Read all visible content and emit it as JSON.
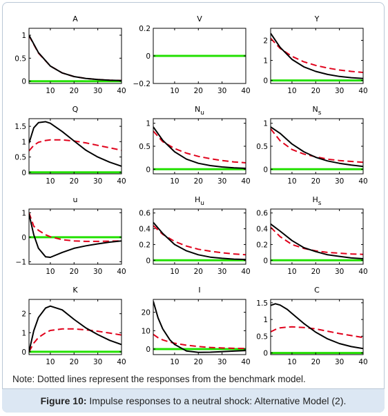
{
  "note": "Note: Dotted lines represent the responses from the benchmark model.",
  "caption": {
    "label": "Figure 10:",
    "text": "Impulse responses to a neutral shock: Alternative Model (2)."
  },
  "colors": {
    "alternative": "#000000",
    "benchmark": "#e0001a",
    "zero": "#22e000"
  },
  "chart_data": [
    {
      "type": "line",
      "title": "A",
      "xlim": [
        1,
        40
      ],
      "ylim": [
        -0.05,
        1.15
      ],
      "xticks": [
        10,
        20,
        30,
        40
      ],
      "yticks": [
        {
          "v": 0,
          "l": "0"
        },
        {
          "v": 0.5,
          "l": "0.5"
        },
        {
          "v": 1,
          "l": "1"
        }
      ],
      "x": [
        1,
        5,
        10,
        15,
        20,
        25,
        30,
        35,
        40
      ],
      "series": [
        {
          "role": "alternative",
          "values": [
            1.0,
            0.62,
            0.33,
            0.18,
            0.1,
            0.06,
            0.035,
            0.022,
            0.015
          ]
        },
        {
          "role": "benchmark",
          "values": [
            0.99,
            0.61,
            0.33,
            0.18,
            0.1,
            0.06,
            0.035,
            0.022,
            0.015
          ]
        },
        {
          "role": "zero",
          "values": [
            0,
            0,
            0,
            0,
            0,
            0,
            0,
            0,
            0
          ]
        }
      ]
    },
    {
      "type": "line",
      "title": "V",
      "xlim": [
        1,
        40
      ],
      "ylim": [
        -0.2,
        0.2
      ],
      "xticks": [
        10,
        20,
        30,
        40
      ],
      "yticks": [
        {
          "v": -0.2,
          "l": "−0.2"
        },
        {
          "v": 0,
          "l": "0"
        },
        {
          "v": 0.2,
          "l": "0.2"
        }
      ],
      "x": [
        1,
        40
      ],
      "series": [
        {
          "role": "zero",
          "values": [
            0,
            0
          ]
        }
      ]
    },
    {
      "type": "line",
      "title": "Y",
      "xlim": [
        1,
        40
      ],
      "ylim": [
        -0.15,
        2.6
      ],
      "xticks": [
        10,
        20,
        30,
        40
      ],
      "yticks": [
        {
          "v": 0,
          "l": "0"
        },
        {
          "v": 1,
          "l": "1"
        },
        {
          "v": 2,
          "l": "2"
        }
      ],
      "x": [
        1,
        5,
        10,
        15,
        20,
        25,
        30,
        35,
        40
      ],
      "series": [
        {
          "role": "alternative",
          "values": [
            2.35,
            1.65,
            1.05,
            0.68,
            0.45,
            0.3,
            0.2,
            0.14,
            0.1
          ]
        },
        {
          "role": "benchmark",
          "values": [
            2.1,
            1.6,
            1.2,
            0.93,
            0.75,
            0.62,
            0.52,
            0.45,
            0.4
          ]
        },
        {
          "role": "zero",
          "values": [
            0,
            0,
            0,
            0,
            0,
            0,
            0,
            0,
            0
          ]
        }
      ]
    },
    {
      "type": "line",
      "title": "Q",
      "xlim": [
        1,
        40
      ],
      "ylim": [
        -0.05,
        1.75
      ],
      "xticks": [
        10,
        20,
        30,
        40
      ],
      "yticks": [
        {
          "v": 0,
          "l": "0"
        },
        {
          "v": 0.5,
          "l": "0.5"
        },
        {
          "v": 1,
          "l": "1"
        },
        {
          "v": 1.5,
          "l": "1.5"
        }
      ],
      "x": [
        1,
        3,
        5,
        8,
        10,
        15,
        20,
        25,
        30,
        35,
        40
      ],
      "series": [
        {
          "role": "alternative",
          "values": [
            0.95,
            1.45,
            1.62,
            1.65,
            1.6,
            1.33,
            1.02,
            0.72,
            0.5,
            0.33,
            0.2
          ]
        },
        {
          "role": "benchmark",
          "values": [
            0.7,
            0.88,
            0.98,
            1.04,
            1.06,
            1.06,
            1.02,
            0.96,
            0.88,
            0.8,
            0.72
          ]
        },
        {
          "role": "zero",
          "values": [
            0,
            0,
            0,
            0,
            0,
            0,
            0,
            0,
            0,
            0,
            0
          ]
        }
      ]
    },
    {
      "type": "line",
      "title": "N",
      "subscript": "u",
      "xlim": [
        1,
        40
      ],
      "ylim": [
        -0.1,
        1.1
      ],
      "xticks": [
        10,
        20,
        30,
        40
      ],
      "yticks": [
        {
          "v": 0,
          "l": "0"
        },
        {
          "v": 0.5,
          "l": "0.5"
        },
        {
          "v": 1,
          "l": "1"
        }
      ],
      "x": [
        1,
        5,
        10,
        15,
        20,
        25,
        30,
        35,
        40
      ],
      "series": [
        {
          "role": "alternative",
          "values": [
            0.92,
            0.63,
            0.38,
            0.22,
            0.13,
            0.08,
            0.05,
            0.03,
            0.02
          ]
        },
        {
          "role": "benchmark",
          "values": [
            0.83,
            0.6,
            0.45,
            0.35,
            0.28,
            0.23,
            0.19,
            0.16,
            0.14
          ]
        },
        {
          "role": "zero",
          "values": [
            0,
            0,
            0,
            0,
            0,
            0,
            0,
            0,
            0
          ]
        }
      ]
    },
    {
      "type": "line",
      "title": "N",
      "subscript": "s",
      "xlim": [
        1,
        40
      ],
      "ylim": [
        -0.1,
        1.1
      ],
      "xticks": [
        10,
        20,
        30,
        40
      ],
      "yticks": [
        {
          "v": 0,
          "l": "0"
        },
        {
          "v": 0.5,
          "l": "0.5"
        },
        {
          "v": 1,
          "l": "1"
        }
      ],
      "x": [
        1,
        5,
        10,
        15,
        20,
        25,
        30,
        35,
        40
      ],
      "series": [
        {
          "role": "alternative",
          "values": [
            0.92,
            0.78,
            0.55,
            0.38,
            0.26,
            0.18,
            0.13,
            0.09,
            0.06
          ]
        },
        {
          "role": "benchmark",
          "values": [
            0.88,
            0.62,
            0.43,
            0.33,
            0.27,
            0.22,
            0.19,
            0.17,
            0.15
          ]
        },
        {
          "role": "zero",
          "values": [
            0,
            0,
            0,
            0,
            0,
            0,
            0,
            0,
            0
          ]
        }
      ]
    },
    {
      "type": "line",
      "title": "u",
      "xlim": [
        1,
        40
      ],
      "ylim": [
        -1.1,
        1.15
      ],
      "xticks": [
        10,
        20,
        30,
        40
      ],
      "yticks": [
        {
          "v": -1,
          "l": "−1"
        },
        {
          "v": 0,
          "l": "0"
        },
        {
          "v": 1,
          "l": "1"
        }
      ],
      "x": [
        1,
        3,
        5,
        8,
        10,
        15,
        20,
        25,
        30,
        35,
        40
      ],
      "series": [
        {
          "role": "alternative",
          "values": [
            0.95,
            0.1,
            -0.45,
            -0.8,
            -0.82,
            -0.62,
            -0.45,
            -0.35,
            -0.27,
            -0.2,
            -0.15
          ]
        },
        {
          "role": "benchmark",
          "values": [
            1.0,
            0.45,
            0.28,
            0.1,
            0.02,
            -0.1,
            -0.15,
            -0.17,
            -0.17,
            -0.16,
            -0.15
          ]
        },
        {
          "role": "zero",
          "values": [
            0,
            0,
            0,
            0,
            0,
            0,
            0,
            0,
            0,
            0,
            0
          ]
        }
      ]
    },
    {
      "type": "line",
      "title": "H",
      "subscript": "u",
      "xlim": [
        1,
        40
      ],
      "ylim": [
        -0.05,
        0.65
      ],
      "xticks": [
        10,
        20,
        30,
        40
      ],
      "yticks": [
        {
          "v": 0,
          "l": "0"
        },
        {
          "v": 0.2,
          "l": "0.2"
        },
        {
          "v": 0.4,
          "l": "0.4"
        },
        {
          "v": 0.6,
          "l": "0.6"
        }
      ],
      "x": [
        1,
        5,
        10,
        15,
        20,
        25,
        30,
        35,
        40
      ],
      "series": [
        {
          "role": "alternative",
          "values": [
            0.48,
            0.34,
            0.2,
            0.12,
            0.07,
            0.04,
            0.025,
            0.015,
            0.01
          ]
        },
        {
          "role": "benchmark",
          "values": [
            0.44,
            0.33,
            0.24,
            0.18,
            0.14,
            0.115,
            0.095,
            0.08,
            0.07
          ]
        },
        {
          "role": "zero",
          "values": [
            0,
            0,
            0,
            0,
            0,
            0,
            0,
            0,
            0
          ]
        }
      ]
    },
    {
      "type": "line",
      "title": "H",
      "subscript": "s",
      "xlim": [
        1,
        40
      ],
      "ylim": [
        -0.05,
        0.65
      ],
      "xticks": [
        10,
        20,
        30,
        40
      ],
      "yticks": [
        {
          "v": 0,
          "l": "0"
        },
        {
          "v": 0.2,
          "l": "0.2"
        },
        {
          "v": 0.4,
          "l": "0.4"
        },
        {
          "v": 0.6,
          "l": "0.6"
        }
      ],
      "x": [
        1,
        5,
        10,
        15,
        20,
        25,
        30,
        35,
        40
      ],
      "series": [
        {
          "role": "alternative",
          "values": [
            0.46,
            0.37,
            0.25,
            0.16,
            0.11,
            0.07,
            0.05,
            0.03,
            0.02
          ]
        },
        {
          "role": "benchmark",
          "values": [
            0.42,
            0.3,
            0.2,
            0.15,
            0.12,
            0.1,
            0.09,
            0.08,
            0.075
          ]
        },
        {
          "role": "zero",
          "values": [
            0,
            0,
            0,
            0,
            0,
            0,
            0,
            0,
            0
          ]
        }
      ]
    },
    {
      "type": "line",
      "title": "K",
      "xlim": [
        1,
        40
      ],
      "ylim": [
        -0.15,
        2.75
      ],
      "xticks": [
        10,
        20,
        30,
        40
      ],
      "yticks": [
        {
          "v": 0,
          "l": "0"
        },
        {
          "v": 1,
          "l": "1"
        },
        {
          "v": 2,
          "l": "2"
        }
      ],
      "x": [
        1,
        3,
        5,
        8,
        10,
        15,
        20,
        25,
        30,
        35,
        40
      ],
      "series": [
        {
          "role": "alternative",
          "values": [
            0.0,
            1.1,
            1.8,
            2.3,
            2.4,
            2.2,
            1.7,
            1.25,
            0.9,
            0.6,
            0.38
          ]
        },
        {
          "role": "benchmark",
          "values": [
            0.0,
            0.45,
            0.75,
            1.0,
            1.12,
            1.2,
            1.2,
            1.15,
            1.08,
            0.98,
            0.88
          ]
        },
        {
          "role": "zero",
          "values": [
            0,
            0,
            0,
            0,
            0,
            0,
            0,
            0,
            0,
            0,
            0
          ]
        }
      ]
    },
    {
      "type": "line",
      "title": "I",
      "xlim": [
        1,
        40
      ],
      "ylim": [
        -3,
        27
      ],
      "xticks": [
        10,
        20,
        30,
        40
      ],
      "yticks": [
        {
          "v": 0,
          "l": "0"
        },
        {
          "v": 10,
          "l": "10"
        },
        {
          "v": 20,
          "l": "20"
        }
      ],
      "x": [
        1,
        3,
        5,
        8,
        10,
        15,
        20,
        25,
        30,
        35,
        40
      ],
      "series": [
        {
          "role": "alternative",
          "values": [
            26,
            17,
            11,
            5,
            2.5,
            -1.0,
            -1.8,
            -1.7,
            -1.4,
            -1.1,
            -0.8
          ]
        },
        {
          "role": "benchmark",
          "values": [
            8,
            6.2,
            5.0,
            3.8,
            3.2,
            2.1,
            1.4,
            0.9,
            0.6,
            0.4,
            0.3
          ]
        },
        {
          "role": "zero",
          "values": [
            0,
            0,
            0,
            0,
            0,
            0,
            0,
            0,
            0,
            0,
            0
          ]
        }
      ]
    },
    {
      "type": "line",
      "title": "C",
      "xlim": [
        1,
        40
      ],
      "ylim": [
        -0.05,
        1.6
      ],
      "xticks": [
        10,
        20,
        30,
        40
      ],
      "yticks": [
        {
          "v": 0,
          "l": "0"
        },
        {
          "v": 0.5,
          "l": "0.5"
        },
        {
          "v": 1,
          "l": "1"
        },
        {
          "v": 1.5,
          "l": "1.5"
        }
      ],
      "x": [
        1,
        3,
        5,
        8,
        10,
        15,
        20,
        25,
        30,
        35,
        40
      ],
      "series": [
        {
          "role": "alternative",
          "values": [
            1.42,
            1.47,
            1.43,
            1.3,
            1.18,
            0.88,
            0.62,
            0.42,
            0.28,
            0.19,
            0.13
          ]
        },
        {
          "role": "benchmark",
          "values": [
            0.63,
            0.7,
            0.75,
            0.77,
            0.78,
            0.76,
            0.72,
            0.65,
            0.58,
            0.52,
            0.46
          ]
        },
        {
          "role": "zero",
          "values": [
            0,
            0,
            0,
            0,
            0,
            0,
            0,
            0,
            0,
            0,
            0
          ]
        }
      ]
    }
  ]
}
